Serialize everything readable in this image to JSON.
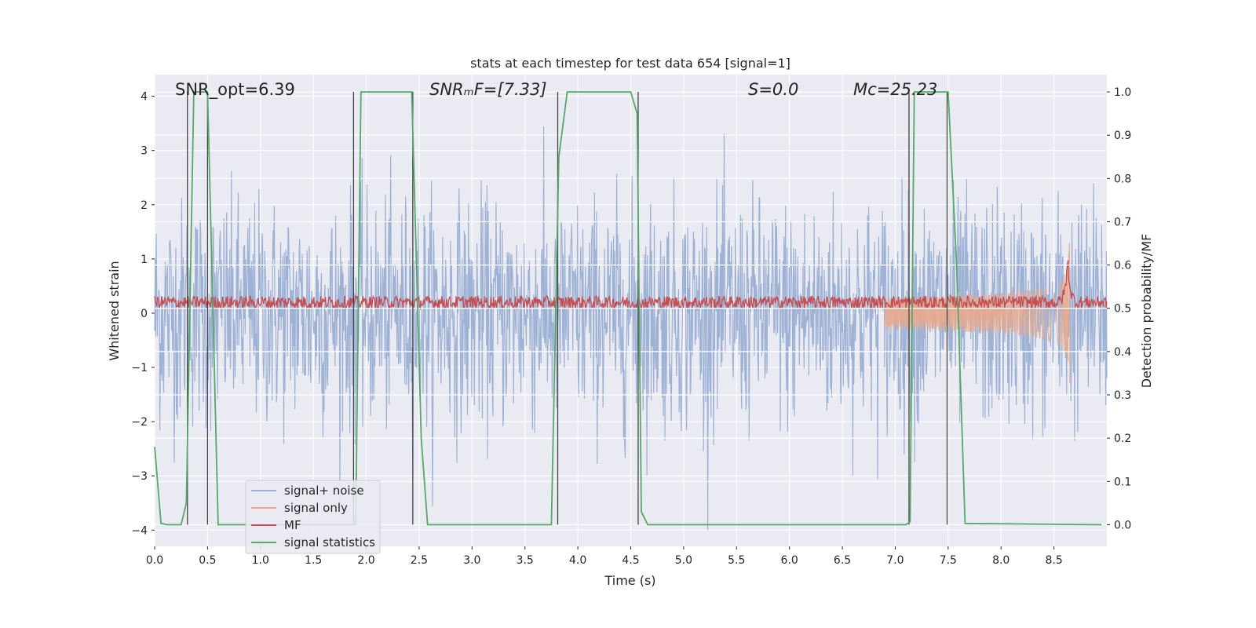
{
  "chart_data": {
    "type": "line",
    "title": "stats at each timestep for test data 654 [signal=1]",
    "xlabel": "Time (s)",
    "ylabel": "Whitened strain",
    "ylabel_right": "Detection probability/MF",
    "xlim": [
      0.0,
      9.0
    ],
    "ylim": [
      -4.3,
      4.4
    ],
    "ylim_right": [
      -0.05,
      1.04
    ],
    "x_ticks": [
      0.0,
      0.5,
      1.0,
      1.5,
      2.0,
      2.5,
      3.0,
      3.5,
      4.0,
      4.5,
      5.0,
      5.5,
      6.0,
      6.5,
      7.0,
      7.5,
      8.0,
      8.5
    ],
    "x_tick_labels": [
      "0.0",
      "0.5",
      "1.0",
      "1.5",
      "2.0",
      "2.5",
      "3.0",
      "3.5",
      "4.0",
      "4.5",
      "5.0",
      "5.5",
      "6.0",
      "6.5",
      "7.0",
      "7.5",
      "8.0",
      "8.5"
    ],
    "y_ticks": [
      4,
      3,
      2,
      1,
      0,
      -1,
      -2,
      -3,
      -4
    ],
    "y_tick_labels": [
      "4",
      "3",
      "2",
      "1",
      "0",
      "−1",
      "−2",
      "−3",
      "−4"
    ],
    "y_right_ticks": [
      1.0,
      0.9,
      0.8,
      0.7,
      0.6,
      0.5,
      0.4,
      0.3,
      0.2,
      0.1,
      0.0
    ],
    "y_right_tick_labels": [
      "1.0",
      "0.9",
      "0.8",
      "0.7",
      "0.6",
      "0.5",
      "0.4",
      "0.3",
      "0.2",
      "0.1",
      "0.0"
    ],
    "grid": true,
    "legend_position": "lower-left",
    "annotations": [
      {
        "text": "SNR_opt=6.39",
        "x": 0.2
      },
      {
        "text": "SNRₘF=[7.33]",
        "x": 2.6
      },
      {
        "text": "S=0.0",
        "x": 5.6
      },
      {
        "text": "Mᴄ=25.23",
        "x": 6.6
      }
    ],
    "series": [
      {
        "name": "signal+ noise",
        "color": "#9aafd3",
        "axis": "left",
        "kind": "noise",
        "std": 1.05,
        "range": [
          -4.0,
          4.0
        ]
      },
      {
        "name": "signal only",
        "color": "#e8a98c",
        "axis": "left",
        "kind": "chirp",
        "merger_time": 8.65,
        "peak_amplitude": 1.6
      },
      {
        "name": "MF",
        "color": "#c44e52",
        "axis": "left",
        "kind": "mf",
        "mean": 0.2,
        "spread": 0.12,
        "peak": 1.0,
        "peak_time": 8.63
      },
      {
        "name": "signal statistics",
        "color": "#55a868",
        "axis": "right",
        "x": [
          0.0,
          0.06,
          0.12,
          0.25,
          0.3,
          0.37,
          0.5,
          0.6,
          0.62,
          1.2,
          1.28,
          1.4,
          1.5,
          1.9,
          1.95,
          2.43,
          2.52,
          2.58,
          3.75,
          3.82,
          3.9,
          4.5,
          4.56,
          4.6,
          4.66,
          7.1,
          7.14,
          7.18,
          7.5,
          7.58,
          7.66,
          8.95
        ],
        "y": [
          0.18,
          0.003,
          0.0,
          0.0,
          0.05,
          1.0,
          1.0,
          0.0,
          0.0,
          0.0,
          0.0,
          0.0,
          0.0,
          0.0,
          1.0,
          1.0,
          0.2,
          0.0,
          0.0,
          0.85,
          1.0,
          1.0,
          0.95,
          0.03,
          0.0,
          0.0,
          0.007,
          1.0,
          1.0,
          0.6,
          0.003,
          0.0
        ]
      }
    ],
    "vertical_markers": [
      0.31,
      0.5,
      1.88,
      2.44,
      3.81,
      4.57,
      7.13,
      7.49
    ]
  }
}
